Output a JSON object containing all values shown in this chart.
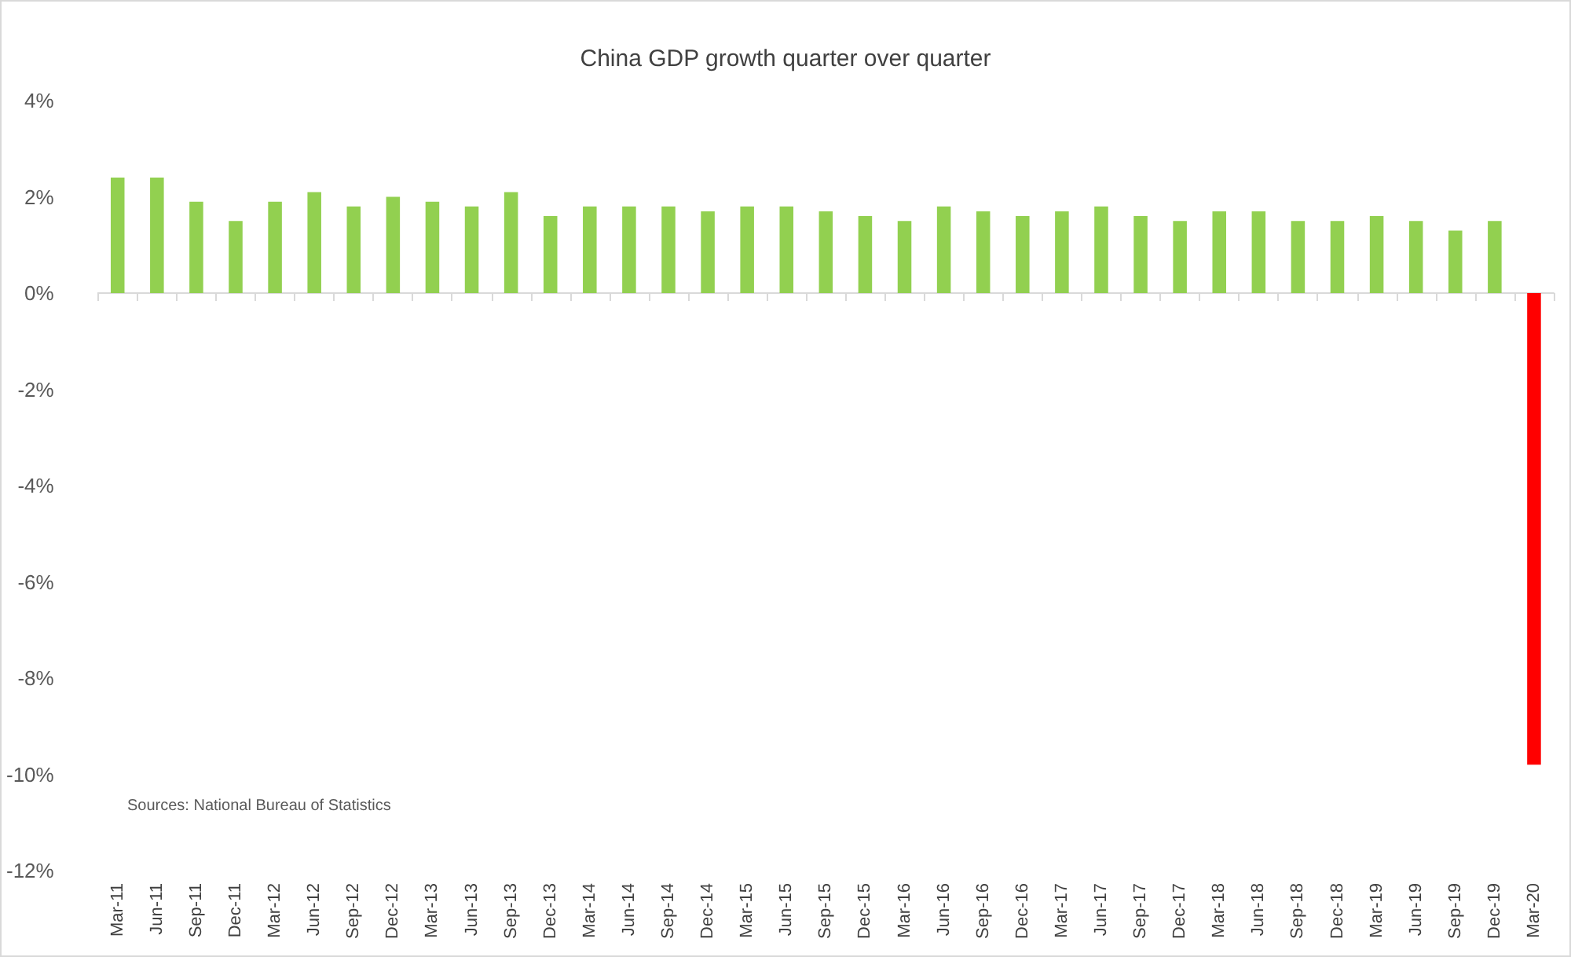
{
  "chart_data": {
    "type": "bar",
    "title": "China GDP growth quarter over quarter",
    "categories": [
      "Mar-11",
      "Jun-11",
      "Sep-11",
      "Dec-11",
      "Mar-12",
      "Jun-12",
      "Sep-12",
      "Dec-12",
      "Mar-13",
      "Jun-13",
      "Sep-13",
      "Dec-13",
      "Mar-14",
      "Jun-14",
      "Sep-14",
      "Dec-14",
      "Mar-15",
      "Jun-15",
      "Sep-15",
      "Dec-15",
      "Mar-16",
      "Jun-16",
      "Sep-16",
      "Dec-16",
      "Mar-17",
      "Jun-17",
      "Sep-17",
      "Dec-17",
      "Mar-18",
      "Jun-18",
      "Sep-18",
      "Dec-18",
      "Mar-19",
      "Jun-19",
      "Sep-19",
      "Dec-19",
      "Mar-20"
    ],
    "values": [
      2.4,
      2.4,
      1.9,
      1.5,
      1.9,
      2.1,
      1.8,
      2.0,
      1.9,
      1.8,
      2.1,
      1.6,
      1.8,
      1.8,
      1.8,
      1.7,
      1.8,
      1.8,
      1.7,
      1.6,
      1.5,
      1.8,
      1.7,
      1.6,
      1.7,
      1.8,
      1.6,
      1.5,
      1.7,
      1.7,
      1.5,
      1.5,
      1.6,
      1.5,
      1.3,
      1.5,
      -9.8
    ],
    "colors": [
      "#92d050",
      "#92d050",
      "#92d050",
      "#92d050",
      "#92d050",
      "#92d050",
      "#92d050",
      "#92d050",
      "#92d050",
      "#92d050",
      "#92d050",
      "#92d050",
      "#92d050",
      "#92d050",
      "#92d050",
      "#92d050",
      "#92d050",
      "#92d050",
      "#92d050",
      "#92d050",
      "#92d050",
      "#92d050",
      "#92d050",
      "#92d050",
      "#92d050",
      "#92d050",
      "#92d050",
      "#92d050",
      "#92d050",
      "#92d050",
      "#92d050",
      "#92d050",
      "#92d050",
      "#92d050",
      "#92d050",
      "#92d050",
      "#ff0000"
    ],
    "ylim": [
      -12,
      4
    ],
    "yticks": [
      {
        "value": -12,
        "label": "-12%"
      },
      {
        "value": -10,
        "label": "-10%"
      },
      {
        "value": -8,
        "label": "-8%"
      },
      {
        "value": -6,
        "label": "-6%"
      },
      {
        "value": -4,
        "label": "-4%"
      },
      {
        "value": -2,
        "label": "-2%"
      },
      {
        "value": 0,
        "label": "0%"
      },
      {
        "value": 2,
        "label": "2%"
      },
      {
        "value": 4,
        "label": "4%"
      }
    ],
    "annotations": [
      "Sources: National Bureau of Statistics"
    ]
  }
}
